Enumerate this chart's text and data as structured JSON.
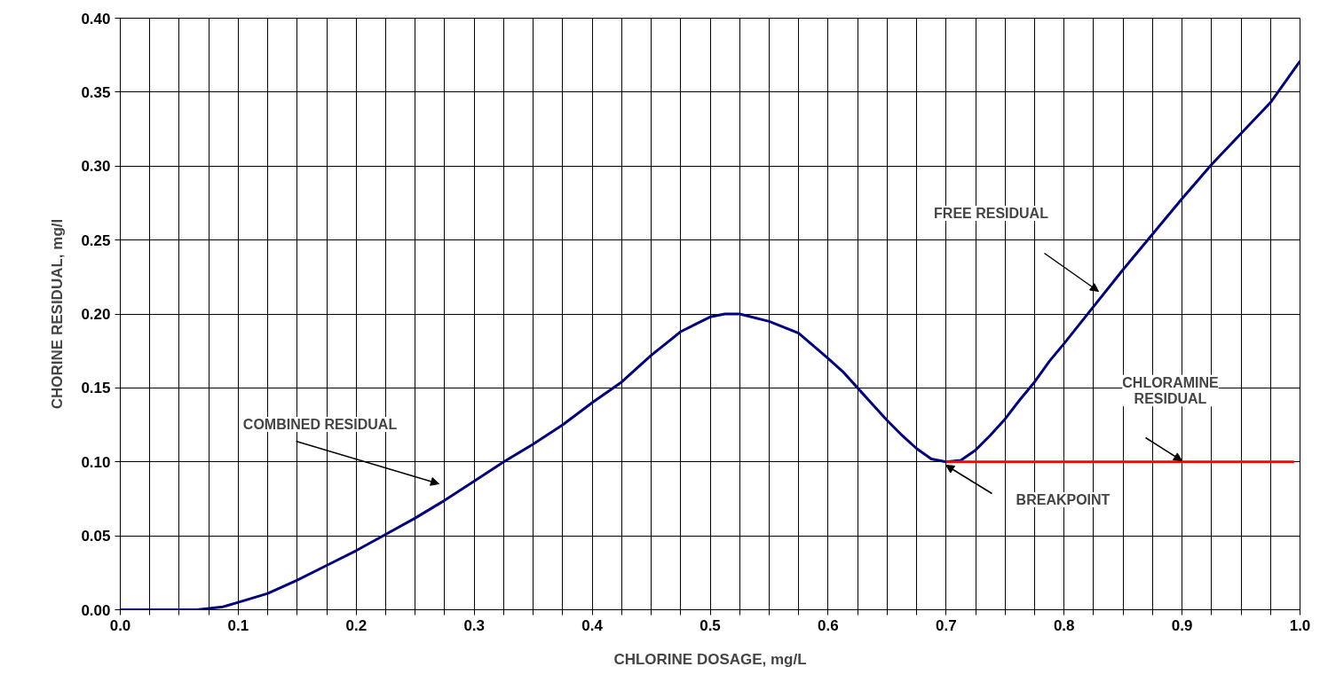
{
  "chart_data": {
    "type": "line",
    "xlabel": "CHLORINE DOSAGE, mg/L",
    "ylabel": "CHORINE RESIDUAL, mg/l",
    "xlim": [
      0,
      1
    ],
    "ylim": [
      0,
      0.4
    ],
    "xticks": [
      {
        "value": 0,
        "label": "0.0"
      },
      {
        "value": 0.025,
        "label": null
      },
      {
        "value": 0.05,
        "label": null
      },
      {
        "value": 0.075,
        "label": null
      },
      {
        "value": 0.1,
        "label": "0.1"
      },
      {
        "value": 0.125,
        "label": null
      },
      {
        "value": 0.15,
        "label": null
      },
      {
        "value": 0.175,
        "label": null
      },
      {
        "value": 0.2,
        "label": "0.2"
      },
      {
        "value": 0.225,
        "label": null
      },
      {
        "value": 0.25,
        "label": null
      },
      {
        "value": 0.275,
        "label": null
      },
      {
        "value": 0.3,
        "label": "0.3"
      },
      {
        "value": 0.325,
        "label": null
      },
      {
        "value": 0.35,
        "label": null
      },
      {
        "value": 0.375,
        "label": null
      },
      {
        "value": 0.4,
        "label": "0.4"
      },
      {
        "value": 0.425,
        "label": null
      },
      {
        "value": 0.45,
        "label": null
      },
      {
        "value": 0.475,
        "label": null
      },
      {
        "value": 0.5,
        "label": "0.5"
      },
      {
        "value": 0.525,
        "label": null
      },
      {
        "value": 0.55,
        "label": null
      },
      {
        "value": 0.575,
        "label": null
      },
      {
        "value": 0.6,
        "label": "0.6"
      },
      {
        "value": 0.625,
        "label": null
      },
      {
        "value": 0.65,
        "label": null
      },
      {
        "value": 0.675,
        "label": null
      },
      {
        "value": 0.7,
        "label": "0.7"
      },
      {
        "value": 0.725,
        "label": null
      },
      {
        "value": 0.75,
        "label": null
      },
      {
        "value": 0.775,
        "label": null
      },
      {
        "value": 0.8,
        "label": "0.8"
      },
      {
        "value": 0.825,
        "label": null
      },
      {
        "value": 0.85,
        "label": null
      },
      {
        "value": 0.875,
        "label": null
      },
      {
        "value": 0.9,
        "label": "0.9"
      },
      {
        "value": 0.925,
        "label": null
      },
      {
        "value": 0.95,
        "label": null
      },
      {
        "value": 0.975,
        "label": null
      },
      {
        "value": 1,
        "label": "1.0"
      }
    ],
    "yticks": [
      {
        "value": 0,
        "label": "0.00"
      },
      {
        "value": 0.05,
        "label": "0.05"
      },
      {
        "value": 0.1,
        "label": "0.10"
      },
      {
        "value": 0.15,
        "label": "0.15"
      },
      {
        "value": 0.2,
        "label": "0.20"
      },
      {
        "value": 0.25,
        "label": "0.25"
      },
      {
        "value": 0.3,
        "label": "0.30"
      },
      {
        "value": 0.35,
        "label": "0.35"
      },
      {
        "value": 0.4,
        "label": "0.40"
      }
    ],
    "grid": true,
    "marker": "none",
    "line_style": "solid",
    "series": [
      {
        "color": "#000080",
        "x": [
          0,
          0.025,
          0.05,
          0.065,
          0.087,
          0.1,
          0.125,
          0.15,
          0.175,
          0.2,
          0.225,
          0.25,
          0.275,
          0.3,
          0.325,
          0.35,
          0.375,
          0.4,
          0.425,
          0.4375,
          0.45,
          0.4625,
          0.475,
          0.4875,
          0.5,
          0.5125,
          0.525,
          0.55,
          0.575,
          0.6,
          0.6125,
          0.625,
          0.6375,
          0.65,
          0.6625,
          0.675,
          0.6875,
          0.7,
          0.7125,
          0.725,
          0.7375,
          0.75,
          0.7625,
          0.775,
          0.7875,
          0.8,
          0.825,
          0.85,
          0.875,
          0.9,
          0.925,
          0.95,
          0.975,
          1
        ],
        "values": [
          0,
          0,
          0,
          0,
          0.002,
          0.005,
          0.011,
          0.02,
          0.03,
          0.04,
          0.051,
          0.062,
          0.074,
          0.087,
          0.1,
          0.112,
          0.125,
          0.14,
          0.154,
          0.163,
          0.172,
          0.18,
          0.188,
          0.193,
          0.198,
          0.2,
          0.2,
          0.195,
          0.187,
          0.17,
          0.161,
          0.15,
          0.139,
          0.128,
          0.118,
          0.109,
          0.102,
          0.1,
          0.101,
          0.108,
          0.118,
          0.129,
          0.142,
          0.154,
          0.168,
          0.18,
          0.205,
          0.23,
          0.254,
          0.278,
          0.301,
          0.322,
          0.343,
          0.371
        ]
      },
      {
        "color": "#ff0000",
        "x": [
          0.7,
          0.995
        ],
        "values": [
          0.1,
          0.1
        ]
      }
    ],
    "annotations": [
      "COMBINED RESIDUAL",
      "FREE RESIDUAL",
      "CHLORAMINE\nRESIDUAL",
      "BREAKPOINT"
    ]
  }
}
